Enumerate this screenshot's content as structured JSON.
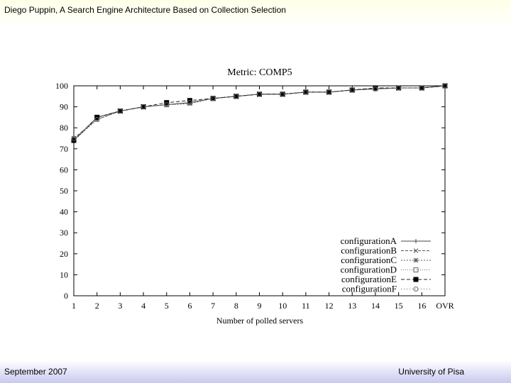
{
  "slide": {
    "header": "Diego Puppin, A Search Engine Architecture Based on Collection Selection",
    "footer_left": "September 2007",
    "footer_right": "University of Pisa"
  },
  "chart_data": {
    "type": "line",
    "title": "Metric: COMP5",
    "xlabel": "Number of polled servers",
    "ylabel": "",
    "categories": [
      "1",
      "2",
      "3",
      "4",
      "5",
      "6",
      "7",
      "8",
      "9",
      "10",
      "11",
      "12",
      "13",
      "14",
      "15",
      "16",
      "OVR"
    ],
    "ylim": [
      0,
      100
    ],
    "yticks": [
      0,
      10,
      20,
      30,
      40,
      50,
      60,
      70,
      80,
      90,
      100
    ],
    "grid": false,
    "legend_position": "bottom-right",
    "series": [
      {
        "name": "configurationA",
        "marker": "plus",
        "dash": "",
        "color": "#444444",
        "values": [
          74,
          85,
          88,
          90,
          91,
          92,
          94,
          95,
          96,
          96,
          97,
          97,
          98,
          98.5,
          99,
          99,
          100
        ]
      },
      {
        "name": "configurationB",
        "marker": "cross",
        "dash": "4,2",
        "color": "#555555",
        "values": [
          75,
          84,
          88,
          90,
          91,
          92,
          94,
          95,
          96,
          96,
          97,
          97,
          98,
          98.5,
          99,
          99,
          100
        ]
      },
      {
        "name": "configurationC",
        "marker": "asterisk",
        "dash": "2,2",
        "color": "#555555",
        "values": [
          74,
          84,
          88,
          90,
          91,
          91.5,
          94,
          95,
          96,
          96,
          97,
          97,
          98,
          98.5,
          99,
          99,
          100
        ]
      },
      {
        "name": "configurationD",
        "marker": "square-open",
        "dash": "1,2",
        "color": "#666666",
        "values": [
          74,
          85,
          88,
          90,
          91,
          92,
          94,
          95,
          96,
          96,
          97,
          97,
          98,
          99,
          99,
          99,
          100
        ]
      },
      {
        "name": "configurationE",
        "marker": "square-filled",
        "dash": "5,3",
        "color": "#222222",
        "values": [
          74,
          85,
          88,
          90,
          92,
          93,
          94,
          95,
          96,
          96,
          97,
          97,
          98,
          99,
          99,
          99,
          100
        ]
      },
      {
        "name": "configurationF",
        "marker": "circle-open",
        "dash": "1,3",
        "color": "#666666",
        "values": [
          75,
          84,
          88,
          90,
          91,
          92,
          94,
          95,
          96,
          96,
          97,
          97,
          98,
          98.5,
          99,
          99,
          100
        ]
      }
    ]
  }
}
